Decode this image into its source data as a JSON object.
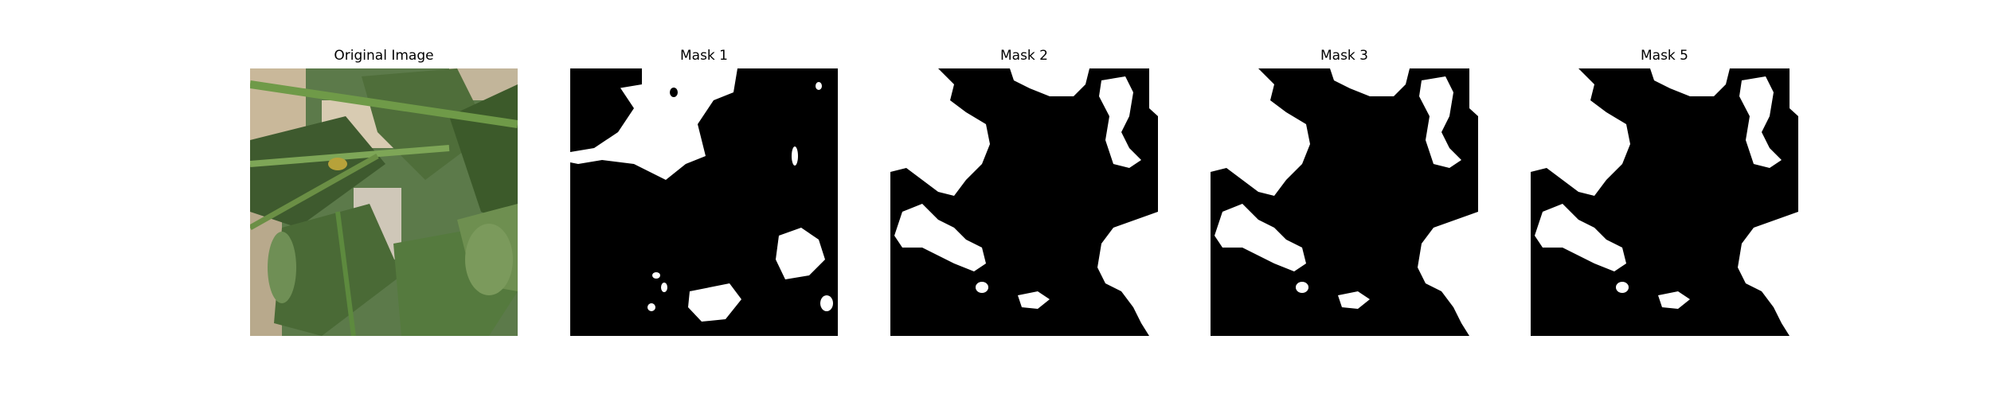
{
  "figure": {
    "panels": [
      {
        "title": "Original Image",
        "kind": "photo",
        "subject": "pepper-plant-leaves"
      },
      {
        "title": "Mask 1",
        "kind": "binary-mask"
      },
      {
        "title": "Mask 2",
        "kind": "binary-mask"
      },
      {
        "title": "Mask 3",
        "kind": "binary-mask"
      },
      {
        "title": "Mask 5",
        "kind": "binary-mask"
      }
    ],
    "colors": {
      "background": "#ffffff",
      "mask_fg": "#ffffff",
      "mask_bg": "#000000"
    }
  }
}
